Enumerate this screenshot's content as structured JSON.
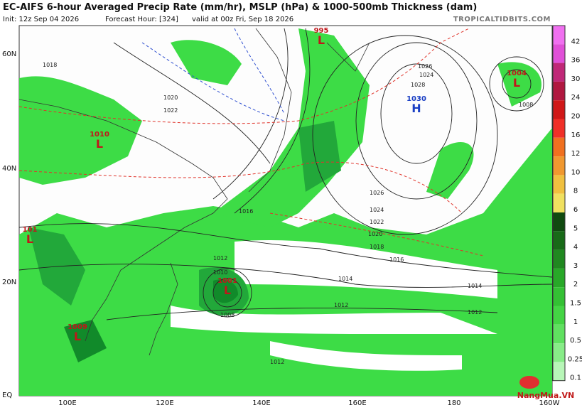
{
  "header": {
    "title": "EC-AIFS 6-hour Averaged Precip Rate (mm/hr), MSLP (hPa) & 1000-500mb Thickness (dam)",
    "init": "Init: 12z Sep 04 2026",
    "forecast_hour": "Forecast Hour: [324]",
    "valid": "valid at 00z Fri, Sep 18 2026",
    "site": "TROPICALTIDBITS.COM"
  },
  "lat_labels": [
    "60N",
    "40N",
    "20N",
    "EQ"
  ],
  "lon_labels": [
    "100E",
    "120E",
    "140E",
    "160E",
    "180",
    "160W"
  ],
  "colorbar": [
    "42",
    "36",
    "30",
    "24",
    "20",
    "16",
    "12",
    "10",
    "8",
    "6",
    "5",
    "4",
    "3",
    "2",
    "1.5",
    "1",
    "0.5",
    "0.25",
    "0.1"
  ],
  "centers": [
    {
      "letter": "L",
      "value": "995"
    },
    {
      "letter": "H",
      "value": "1030"
    },
    {
      "letter": "L",
      "value": "1004"
    },
    {
      "letter": "L",
      "value": "1010"
    },
    {
      "letter": "L",
      "value": "101"
    },
    {
      "letter": "L",
      "value": "1001"
    },
    {
      "letter": "L",
      "value": "1009"
    }
  ],
  "contour_labels": [
    "1024",
    "1026",
    "1028",
    "1026",
    "1024",
    "1022",
    "1020",
    "1018",
    "1016",
    "1014",
    "1012",
    "1014",
    "1012",
    "1016",
    "1012",
    "1010",
    "1008",
    "1012",
    "1008",
    "1018",
    "1020",
    "1022"
  ],
  "watermark": "NangMua.VN"
}
